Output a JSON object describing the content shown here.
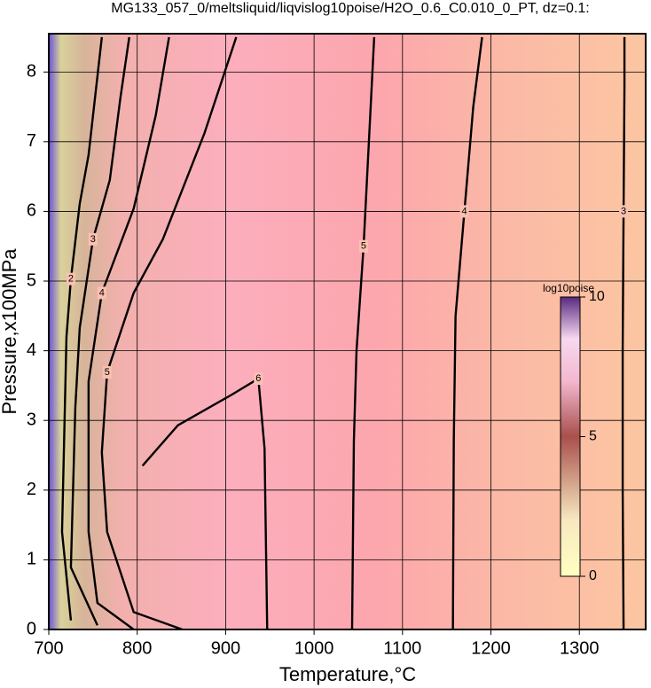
{
  "chart_data": {
    "type": "contour",
    "title": "MG133_057_0/meltsliquid/liqvislog10poise/H2O_0.6_C0.010_0_PT, dz=0.1:",
    "x_label": "Temperature,°C",
    "y_label": "Pressure,x100MPa",
    "xlim": [
      700,
      1375
    ],
    "ylim": [
      0,
      8.55
    ],
    "xticks": [
      700,
      800,
      900,
      1000,
      1100,
      1200,
      1300
    ],
    "yticks": [
      0,
      1,
      2,
      3,
      4,
      5,
      6,
      7,
      8
    ],
    "grid": true,
    "contours": [
      {
        "level": 2,
        "x": [
          725,
          715,
          720,
          725,
          735,
          745,
          760
        ],
        "y": [
          0.13,
          1.4,
          4.2,
          5.03,
          6.11,
          6.81,
          8.5
        ]
      },
      {
        "level": 3,
        "x": [
          755,
          725,
          730,
          735,
          750,
          769,
          781,
          791
        ],
        "y": [
          0.06,
          0.89,
          3.18,
          4.33,
          5.6,
          6.45,
          7.63,
          8.5
        ]
      },
      {
        "level": 4,
        "x": [
          796,
          755,
          745,
          745,
          760,
          796,
          821,
          836
        ],
        "y": [
          0,
          0.38,
          1.4,
          3.56,
          4.83,
          6.04,
          7.38,
          8.5
        ]
      },
      {
        "level": 5,
        "x": [
          851,
          796,
          766,
          760,
          766,
          796,
          829,
          876,
          912
        ],
        "y": [
          0,
          0.25,
          1.4,
          2.54,
          3.69,
          4.83,
          5.6,
          7.12,
          8.5
        ]
      },
      {
        "level": 6,
        "x": [
          806,
          846,
          907,
          937,
          944,
          947
        ],
        "y": [
          2.35,
          2.93,
          3.37,
          3.6,
          2.6,
          0
        ]
      },
      {
        "level": 5,
        "x": [
          1043,
          1045,
          1048,
          1056,
          1062,
          1068
        ],
        "y": [
          0,
          2.7,
          4.0,
          5.5,
          7.0,
          8.5
        ]
      },
      {
        "level": 4,
        "x": [
          1157,
          1158,
          1160,
          1170,
          1180,
          1190
        ],
        "y": [
          0,
          2.7,
          4.5,
          6.0,
          7.5,
          8.5
        ]
      },
      {
        "level": 3,
        "x": [
          1350,
          1349,
          1349,
          1350,
          1351,
          1351
        ],
        "y": [
          0,
          2.0,
          4.0,
          6.0,
          7.8,
          8.5
        ]
      }
    ],
    "colorbar": {
      "label": "log10poise",
      "range": [
        0,
        10
      ],
      "ticks": [
        0,
        5,
        10
      ]
    }
  }
}
